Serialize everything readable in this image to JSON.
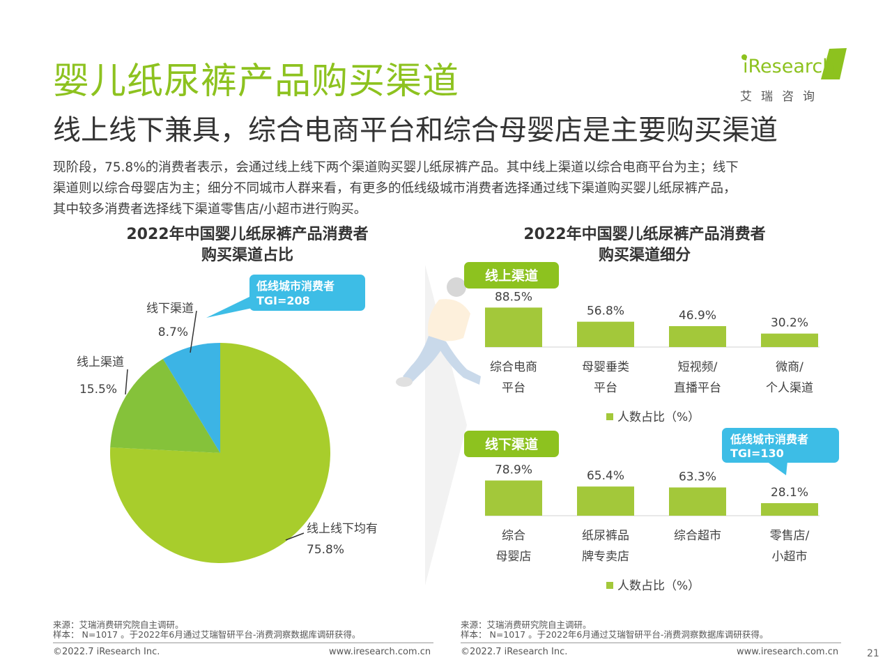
{
  "header": {
    "title": "婴儿纸尿裤产品购买渠道",
    "subtitle": "线上线下兼具，综合电商平台和综合母婴店是主要购买渠道",
    "description_lines": [
      "现阶段，75.8%的消费者表示，会通过线上线下两个渠道购买婴儿纸尿裤产品。其中线上渠道以综合电商平台为主；线下",
      "渠道则以综合母婴店为主；细分不同城市人群来看，有更多的低线级城市消费者选择通过线下渠道购买婴儿纸尿裤产品，",
      "其中较多消费者选择线下渠道零售店/小超市进行购买。"
    ]
  },
  "logo": {
    "name": "iResearch",
    "chinese": "艾瑞咨询"
  },
  "colors": {
    "brand_green": "#8dc21f",
    "bar_green": "#a3c83a",
    "callout_blue": "#3dbde6",
    "pie_green_light": "#a8cd2c",
    "pie_green_dark": "#85c23a",
    "pie_blue": "#3cb4e5"
  },
  "callouts": {
    "pie": {
      "line1": "低线城市消费者",
      "line2": "TGI=208"
    },
    "offline": {
      "line1": "低线城市消费者",
      "line2": "TGI=130"
    }
  },
  "chart_data": [
    {
      "type": "pie",
      "title_lines": [
        "2022年中国婴儿纸尿裤产品消费者",
        "购买渠道占比"
      ],
      "slices": [
        {
          "label": "线上线下均有",
          "value": 75.8,
          "value_label": "75.8%",
          "color": "#a8cd2c"
        },
        {
          "label": "线上渠道",
          "value": 15.5,
          "value_label": "15.5%",
          "color": "#85c23a"
        },
        {
          "label": "线下渠道",
          "value": 8.7,
          "value_label": "8.7%",
          "color": "#3cb4e5"
        }
      ]
    },
    {
      "type": "bar",
      "title_lines": [
        "2022年中国婴儿纸尿裤产品消费者",
        "购买渠道细分"
      ],
      "group_label": "线上渠道",
      "categories": [
        [
          "综合电商",
          "平台"
        ],
        [
          "母婴垂类",
          "平台"
        ],
        [
          "短视频/",
          "直播平台"
        ],
        [
          "微商/",
          "个人渠道"
        ]
      ],
      "values": [
        88.5,
        56.8,
        46.9,
        30.2
      ],
      "value_labels": [
        "88.5%",
        "56.8%",
        "46.9%",
        "30.2%"
      ],
      "legend": "人数占比（%）",
      "ylim": [
        0,
        100
      ]
    },
    {
      "type": "bar",
      "group_label": "线下渠道",
      "categories": [
        [
          "综合",
          "母婴店"
        ],
        [
          "纸尿裤品",
          "牌专卖店"
        ],
        [
          "综合超市"
        ],
        [
          "零售店/",
          "小超市"
        ]
      ],
      "values": [
        78.9,
        65.4,
        63.3,
        28.1
      ],
      "value_labels": [
        "78.9%",
        "65.4%",
        "63.3%",
        "28.1%"
      ],
      "legend": "人数占比（%）",
      "ylim": [
        0,
        100
      ]
    }
  ],
  "footer": {
    "source": "来源：艾瑞消费研究院自主调研。",
    "sample": "样本： N=1017 。于2022年6月通过艾瑞智研平台-消费洞察数据库调研获得。",
    "copyright": "©2022.7 iResearch Inc.",
    "website": "www.iresearch.com.cn",
    "page": "21"
  }
}
